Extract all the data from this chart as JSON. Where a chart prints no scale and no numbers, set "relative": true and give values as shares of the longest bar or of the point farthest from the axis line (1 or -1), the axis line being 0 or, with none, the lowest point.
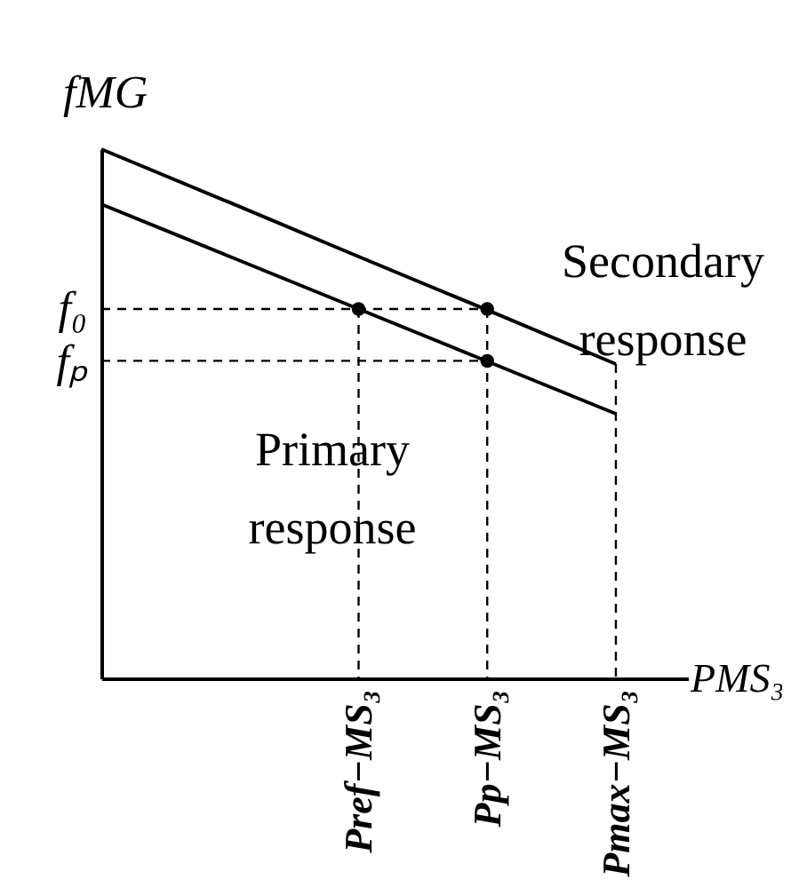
{
  "chart_data": {
    "type": "line",
    "relative": true,
    "categories": [
      null,
      null,
      "Pref−MS₃",
      "Pp−MS₃",
      "Pmax−MS₃"
    ],
    "xlabel": "PMS₃",
    "ylabel": "fMG",
    "grid": false,
    "series": [
      {
        "color": "#000000",
        "line_style": "solid",
        "marker": "none",
        "values": [
          1.0,
          0.899,
          0.797,
          0.696,
          0.594
        ]
      },
      {
        "color": "#000000",
        "line_style": "solid",
        "marker": "none",
        "values": [
          0.896,
          0.797,
          0.698,
          0.599,
          0.5
        ]
      },
      {
        "color": "#000000",
        "line_style": "dashed",
        "marker": "none",
        "values": [
          0.698,
          0.698,
          0.698,
          0.698,
          null
        ]
      },
      {
        "color": "#000000",
        "line_style": "dashed",
        "marker": "none",
        "values": [
          0.6,
          0.6,
          0.6,
          0.6,
          null
        ]
      },
      {
        "color": "#000000",
        "line_style": "dashed",
        "marker": "none",
        "x": [
          "Pref−MS₃",
          "Pref−MS₃"
        ],
        "values": [
          0.698,
          0
        ]
      },
      {
        "color": "#000000",
        "line_style": "dashed",
        "marker": "none",
        "x": [
          "Pp−MS₃",
          "Pp−MS₃"
        ],
        "values": [
          0.698,
          0
        ]
      },
      {
        "color": "#000000",
        "line_style": "dashed",
        "marker": "none",
        "x": [
          "Pmax−MS₃",
          "Pmax−MS₃"
        ],
        "values": [
          0.594,
          0
        ]
      },
      {
        "type": "scatter",
        "color": "#000000",
        "marker": "circle",
        "x": [
          "Pref−MS₃",
          "Pp−MS₃",
          "Pp−MS₃"
        ],
        "values": [
          0.698,
          0.698,
          0.6
        ]
      }
    ],
    "annotations": [
      "f₀",
      "fₚ",
      "Secondary response",
      "Primary response"
    ]
  }
}
